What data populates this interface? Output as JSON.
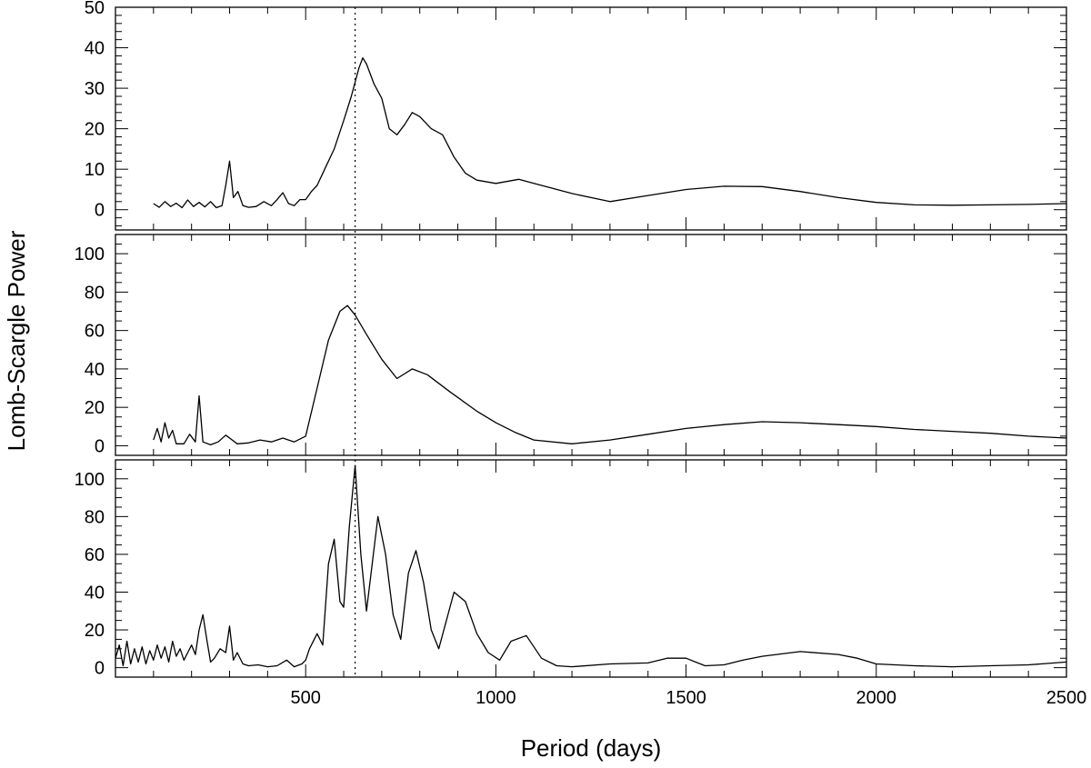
{
  "chart_data": {
    "type": "line",
    "xlabel": "Period (days)",
    "ylabel": "Lomb-Scargle Power",
    "xlim": [
      0,
      2500
    ],
    "x_ticks": [
      500,
      1000,
      1500,
      2000,
      2500
    ],
    "x_minor_step": 100,
    "marker_period": 630,
    "marker_style": "dotted",
    "panels": [
      {
        "ylim": [
          -5,
          50
        ],
        "y_ticks": [
          0,
          10,
          20,
          30,
          40,
          50
        ],
        "y_minor_step": 2,
        "series": {
          "x": [
            100,
            115,
            130,
            145,
            160,
            175,
            190,
            205,
            220,
            235,
            250,
            265,
            280,
            290,
            300,
            310,
            322,
            335,
            350,
            370,
            390,
            410,
            425,
            440,
            455,
            470,
            485,
            500,
            515,
            530,
            550,
            575,
            600,
            620,
            640,
            650,
            660,
            680,
            700,
            720,
            740,
            760,
            780,
            800,
            830,
            860,
            890,
            920,
            950,
            1000,
            1060,
            1100,
            1200,
            1300,
            1400,
            1500,
            1600,
            1700,
            1800,
            1900,
            2000,
            2100,
            2200,
            2300,
            2400,
            2500
          ],
          "y": [
            1.5,
            0.6,
            2.0,
            0.8,
            1.6,
            0.5,
            2.4,
            0.8,
            1.8,
            0.7,
            2.0,
            0.5,
            1.0,
            6.0,
            12.0,
            3.0,
            4.5,
            1.0,
            0.6,
            0.8,
            2.0,
            1.0,
            2.5,
            4.2,
            1.5,
            1.0,
            2.5,
            2.5,
            4.5,
            6.0,
            10.0,
            15.0,
            22.0,
            28.0,
            35.0,
            37.5,
            36.0,
            31.0,
            27.5,
            20.0,
            18.5,
            21.0,
            24.0,
            23.0,
            20.0,
            18.5,
            13.0,
            9.0,
            7.3,
            6.5,
            7.5,
            6.5,
            4.0,
            2.0,
            3.5,
            5.0,
            5.8,
            5.7,
            4.5,
            3.0,
            1.8,
            1.2,
            1.1,
            1.2,
            1.3,
            1.5
          ]
        }
      },
      {
        "ylim": [
          -5,
          110
        ],
        "y_ticks": [
          0,
          20,
          40,
          60,
          80,
          100
        ],
        "y_minor_step": 5,
        "series": {
          "x": [
            100,
            110,
            120,
            130,
            140,
            150,
            160,
            180,
            195,
            210,
            220,
            230,
            250,
            270,
            290,
            320,
            350,
            380,
            410,
            440,
            470,
            500,
            530,
            560,
            590,
            610,
            630,
            660,
            700,
            740,
            780,
            820,
            880,
            950,
            1000,
            1050,
            1100,
            1200,
            1300,
            1400,
            1500,
            1600,
            1700,
            1800,
            1900,
            2000,
            2100,
            2200,
            2300,
            2400,
            2500
          ],
          "y": [
            3,
            9,
            2,
            12,
            4,
            8,
            1,
            1,
            6,
            2,
            26,
            2,
            0.5,
            2,
            5.5,
            1,
            1.5,
            3,
            2,
            4,
            2,
            5,
            30,
            55,
            70,
            73,
            68,
            58,
            45,
            35,
            40,
            37,
            28,
            18,
            12,
            7,
            3,
            1,
            3,
            6,
            9,
            11,
            12.5,
            12,
            11,
            10,
            8.5,
            7.5,
            6.5,
            5,
            4
          ]
        }
      },
      {
        "ylim": [
          -5,
          110
        ],
        "y_ticks": [
          0,
          20,
          40,
          60,
          80,
          100
        ],
        "y_minor_step": 5,
        "series": {
          "x": [
            0,
            10,
            20,
            30,
            40,
            50,
            60,
            70,
            80,
            90,
            100,
            110,
            120,
            130,
            140,
            150,
            160,
            170,
            180,
            190,
            200,
            210,
            220,
            230,
            240,
            250,
            260,
            275,
            290,
            300,
            310,
            320,
            335,
            350,
            375,
            400,
            425,
            450,
            470,
            490,
            500,
            510,
            530,
            545,
            560,
            575,
            590,
            600,
            615,
            630,
            645,
            660,
            675,
            690,
            710,
            730,
            750,
            770,
            790,
            810,
            830,
            850,
            870,
            890,
            920,
            950,
            980,
            1010,
            1040,
            1080,
            1120,
            1160,
            1200,
            1300,
            1400,
            1450,
            1500,
            1550,
            1600,
            1650,
            1700,
            1800,
            1900,
            1950,
            2000,
            2100,
            2200,
            2300,
            2400,
            2500
          ],
          "y": [
            5,
            12,
            1,
            14,
            2,
            10,
            3,
            11,
            2,
            9,
            4,
            12,
            5,
            11,
            3,
            14,
            6,
            10,
            4,
            8,
            12,
            7,
            20,
            28,
            15,
            3,
            5,
            10,
            8,
            22,
            4,
            8,
            2,
            1,
            1.5,
            0.5,
            1,
            4,
            0.5,
            2,
            4,
            10,
            18,
            12,
            55,
            68,
            35,
            32,
            75,
            107,
            60,
            30,
            55,
            80,
            60,
            28,
            15,
            50,
            62,
            45,
            20,
            10,
            25,
            40,
            35,
            18,
            8,
            4,
            14,
            17,
            5,
            1,
            0.5,
            2,
            2.5,
            5,
            5,
            1,
            1.5,
            4,
            6,
            8.5,
            7,
            5,
            2,
            1,
            0.5,
            1,
            1.5,
            3
          ]
        }
      }
    ]
  }
}
